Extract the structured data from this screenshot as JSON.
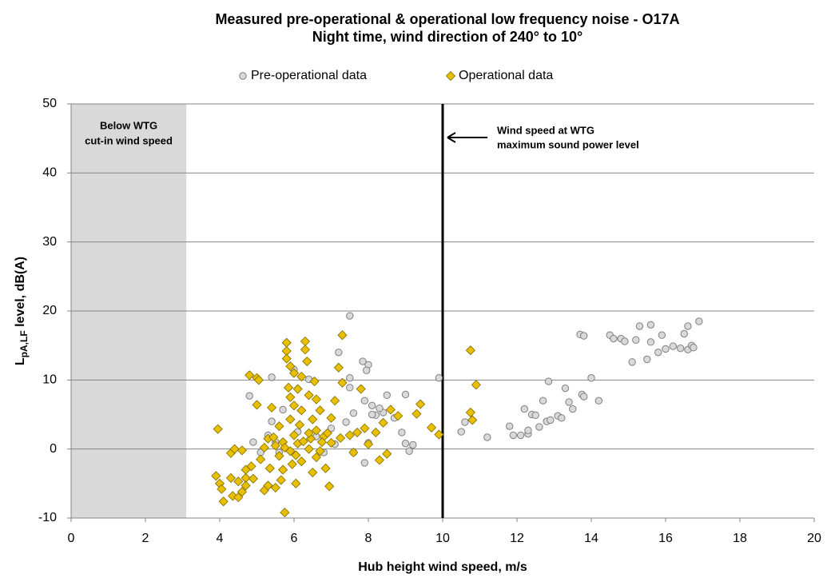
{
  "chart_data": {
    "type": "scatter",
    "title": [
      "Measured pre-operational & operational low frequency noise - O17A",
      "Night time, wind direction of 240° to 10°"
    ],
    "xlabel": "Hub height wind speed, m/s",
    "ylabel": [
      "L",
      "pA,LF",
      " level, dB(A)"
    ],
    "xlim": [
      0,
      20
    ],
    "xticks": [
      0,
      2,
      4,
      6,
      8,
      10,
      12,
      14,
      16,
      18,
      20
    ],
    "ylim": [
      -10,
      50
    ],
    "yticks": [
      -10,
      0,
      10,
      20,
      30,
      40,
      50
    ],
    "grid": true,
    "legend": "top",
    "shaded_region": {
      "xlim": [
        0,
        3.1
      ],
      "color": "#d9d9d9",
      "label": [
        "Below WTG",
        "cut-in wind speed"
      ]
    },
    "vline": {
      "x": 10,
      "color": "#000000",
      "label": [
        "Wind speed at WTG",
        "maximum sound power level"
      ]
    },
    "series": [
      {
        "name": "Pre-operational data",
        "color": "#d9d9d9",
        "marker": "circle",
        "x": [
          11.8,
          11.9,
          12.1,
          12.2,
          12.3,
          12.3,
          12.4,
          12.5,
          12.6,
          12.7,
          12.8,
          12.85,
          12.9,
          13.1,
          13.2,
          13.3,
          13.4,
          13.5,
          13.7,
          13.8,
          13.75,
          13.8,
          14,
          14.2,
          14.5,
          14.6,
          14.8,
          14.9,
          15.1,
          15.2,
          15.3,
          15.5,
          15.6,
          15.6,
          15.8,
          15.9,
          16,
          16.2,
          16.4,
          16.5,
          16.6,
          16.6,
          16.7,
          16.75,
          16.9,
          11.2,
          10.6,
          10.5,
          9.9,
          9.2,
          9.1,
          9,
          8.9,
          9,
          8.7,
          8.5,
          8.4,
          8.3,
          8.2,
          8.1,
          8.1,
          8,
          7.95,
          7.85,
          7.9,
          8,
          7.9,
          7.6,
          7.6,
          7.5,
          7.5,
          7.5,
          7.4,
          7.2,
          6.4,
          6,
          5.7,
          5.4,
          5.4,
          5.3,
          5.1,
          4.8,
          4.9,
          5.6,
          6.1,
          6.6,
          6.8,
          7,
          7.1,
          5.5
        ],
        "values": [
          3.3,
          2,
          2,
          5.8,
          2.2,
          2.7,
          5,
          4.9,
          3.2,
          7,
          4,
          9.8,
          4.2,
          4.8,
          4.5,
          8.8,
          6.8,
          5.8,
          16.6,
          16.4,
          7.9,
          7.6,
          10.3,
          7,
          16.5,
          16,
          16,
          15.6,
          12.6,
          15.8,
          17.8,
          13,
          18,
          15.5,
          14,
          16.5,
          14.5,
          14.9,
          14.6,
          16.7,
          14.4,
          17.8,
          15,
          14.7,
          18.5,
          1.7,
          3.9,
          2.5,
          10.3,
          0.6,
          -0.3,
          0.8,
          2.4,
          7.9,
          4.5,
          7.8,
          5.3,
          5.9,
          4.9,
          5,
          6.3,
          12.2,
          11.4,
          12.7,
          7,
          0.9,
          -2,
          -0.5,
          5.2,
          19.3,
          10.3,
          8.9,
          3.9,
          14,
          10.1,
          11.5,
          5.7,
          10.4,
          4,
          2,
          -0.5,
          7.7,
          1,
          -0.5,
          2.5,
          1.8,
          -0.5,
          3,
          0.7,
          1
        ]
      },
      {
        "name": "Operational data",
        "color": "#e8c000",
        "marker": "diamond",
        "x": [
          3.9,
          3.95,
          4,
          4.05,
          4.1,
          4.3,
          4.3,
          4.35,
          4.4,
          4.5,
          4.5,
          4.6,
          4.7,
          4.7,
          4.6,
          4.7,
          4.8,
          4.85,
          4.9,
          5,
          5,
          5.05,
          5.1,
          5.2,
          5.2,
          5.3,
          5.35,
          5.4,
          5.5,
          5.5,
          5.6,
          5.6,
          5.65,
          5.7,
          5.7,
          5.75,
          5.8,
          5.8,
          5.8,
          5.85,
          5.9,
          5.9,
          5.9,
          5.9,
          5.95,
          6,
          6,
          6,
          6.05,
          6.1,
          6.1,
          6.15,
          6.2,
          6.2,
          6.2,
          6.3,
          6.3,
          6.35,
          6.4,
          6.4,
          6.45,
          6.5,
          6.55,
          6.5,
          6.6,
          6.6,
          6.7,
          6.7,
          6.8,
          6.85,
          6.9,
          6.95,
          7,
          7,
          7.1,
          7.2,
          7.25,
          7.3,
          7.3,
          7.5,
          7.6,
          7.7,
          7.8,
          7.9,
          8,
          8.2,
          8.3,
          8.4,
          8.5,
          8.6,
          8.8,
          9.4,
          9.7,
          9.3,
          9.9,
          10.75,
          10.75,
          10.8,
          10.9,
          5.3,
          5.45,
          5.75,
          6.25,
          6.4,
          6.6,
          6.75,
          6.05
        ],
        "values": [
          -3.9,
          2.9,
          -5,
          -5.8,
          -7.6,
          -4.2,
          -0.6,
          -6.8,
          0,
          -4.7,
          -7,
          -6.2,
          -4.2,
          -5.3,
          -0.2,
          -3,
          10.7,
          -2.5,
          -4.3,
          10.3,
          6.4,
          10,
          -1.5,
          0.2,
          -6,
          -5.3,
          -2.8,
          6,
          -5.6,
          0.5,
          -1,
          3.3,
          -4.5,
          1,
          -3,
          -9.2,
          15.4,
          14.2,
          13.1,
          8.9,
          12,
          7.5,
          4.3,
          -0.3,
          -2.2,
          11,
          6.3,
          2,
          -5,
          8.7,
          0.8,
          3.5,
          10.5,
          -1.8,
          5.6,
          15.6,
          14.4,
          12.7,
          7.8,
          0,
          1.5,
          -3.4,
          9.8,
          4.3,
          7.2,
          2.7,
          5.6,
          -0.3,
          1.8,
          -2.8,
          2.3,
          -5.4,
          0.9,
          4.5,
          7,
          11.8,
          1.6,
          16.5,
          9.6,
          2,
          -0.5,
          2.4,
          8.7,
          3,
          0.7,
          2.4,
          -1.6,
          3.8,
          -0.7,
          5.7,
          4.8,
          6.5,
          3.1,
          5.1,
          2.1,
          14.3,
          5.3,
          4.2,
          9.3,
          1.5,
          1.7,
          0.2,
          1.1,
          2.3,
          -1.2,
          1,
          -0.9
        ]
      }
    ]
  }
}
